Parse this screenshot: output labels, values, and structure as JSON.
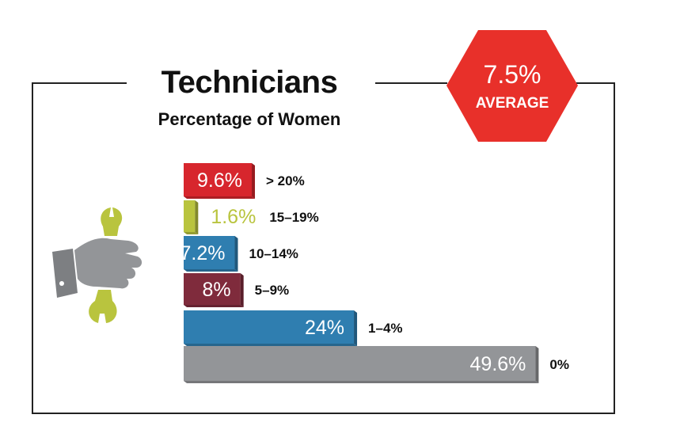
{
  "title": "Technicians",
  "subtitle": "Percentage of Women",
  "badge": {
    "value": "7.5%",
    "label": "AVERAGE",
    "color": "#e8302a"
  },
  "icon": "hand-holding-wrench-icon",
  "chart_data": {
    "type": "bar",
    "orientation": "horizontal",
    "title": "Technicians",
    "subtitle": "Percentage of Women",
    "categories": [
      "> 20%",
      "15–19%",
      "10–14%",
      "5–9%",
      "1–4%",
      "0%"
    ],
    "values": [
      9.6,
      1.6,
      7.2,
      8,
      24,
      49.6
    ],
    "value_labels": [
      "9.6%",
      "1.6%",
      "7.2%",
      "8%",
      "24%",
      "49.6%"
    ],
    "colors": [
      "#d7262d",
      "#b9c43e",
      "#2f7eb0",
      "#7f2b3c",
      "#2f7eb0",
      "#939598"
    ],
    "label_colors": [
      "#ffffff",
      "#b9c43e",
      "#ffffff",
      "#ffffff",
      "#ffffff",
      "#ffffff"
    ],
    "xlim": [
      0,
      50
    ],
    "grid": false,
    "legend": "none"
  }
}
